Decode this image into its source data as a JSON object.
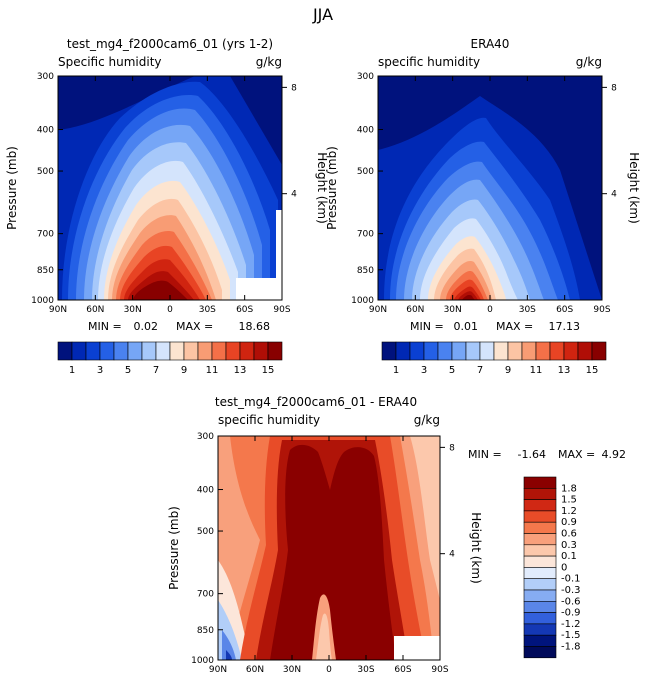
{
  "page": {
    "title": "JJA"
  },
  "panels": [
    {
      "title": "test_mg4_f2000cam6_01 (yrs 1-2)",
      "variable": "Specific humidity",
      "units": "g/kg",
      "ylabel": "Pressure (mb)",
      "rlabel": "Height (km)",
      "min_label": "MIN =",
      "min_value": "0.02",
      "max_label": "MAX =",
      "max_value": "18.68"
    },
    {
      "title": "ERA40",
      "variable": "specific humidity",
      "units": "g/kg",
      "ylabel": "Pressure (mb)",
      "rlabel": "Height (km)",
      "min_label": "MIN =",
      "min_value": "0.01",
      "max_label": "MAX =",
      "max_value": "17.13"
    },
    {
      "title": "test_mg4_f2000cam6_01 - ERA40",
      "variable": "specific humidity",
      "units": "g/kg",
      "ylabel": "Pressure (mb)",
      "rlabel": "Height (km)",
      "min_label": "MIN =",
      "min_value": "-1.64",
      "max_label": "MAX =",
      "max_value": "4.92"
    }
  ],
  "chart_data": [
    {
      "type": "heatmap",
      "x_ticks": [
        "90N",
        "60N",
        "30N",
        "0",
        "30S",
        "60S",
        "90S"
      ],
      "y_ticks": [
        "300",
        "400",
        "500",
        "700",
        "850",
        "1000"
      ],
      "y_scale": "log",
      "ylim": [
        1000,
        300
      ],
      "height_ticks": [
        "8",
        "4"
      ],
      "colorbar_labels": [
        "1",
        "3",
        "5",
        "7",
        "9",
        "11",
        "13",
        "15"
      ],
      "colorbar_orientation": "horizontal",
      "colors": [
        "#00127d",
        "#0028b4",
        "#0a40d2",
        "#2460e6",
        "#4a82f0",
        "#76a6f6",
        "#a6c8fa",
        "#d4e4fc",
        "#fce4d0",
        "#fcc4a4",
        "#f89c74",
        "#f47048",
        "#e84424",
        "#d02410",
        "#b00e06",
        "#880000"
      ]
    },
    {
      "type": "heatmap",
      "x_ticks": [
        "90N",
        "60N",
        "30N",
        "0",
        "30S",
        "60S",
        "90S"
      ],
      "y_ticks": [
        "300",
        "400",
        "500",
        "700",
        "850",
        "1000"
      ],
      "y_scale": "log",
      "ylim": [
        1000,
        300
      ],
      "height_ticks": [
        "8",
        "4"
      ],
      "colorbar_labels": [
        "1",
        "3",
        "5",
        "7",
        "9",
        "11",
        "13",
        "15"
      ],
      "colorbar_orientation": "horizontal"
    },
    {
      "type": "heatmap",
      "x_ticks": [
        "90N",
        "60N",
        "30N",
        "0",
        "30S",
        "60S",
        "90S"
      ],
      "y_ticks": [
        "300",
        "400",
        "500",
        "700",
        "850",
        "1000"
      ],
      "y_scale": "log",
      "ylim": [
        1000,
        300
      ],
      "height_ticks": [
        "8",
        "4"
      ],
      "colorbar_labels": [
        "1.8",
        "1.5",
        "1.2",
        "0.9",
        "0.6",
        "0.3",
        "0.1",
        "0",
        "-0.1",
        "-0.3",
        "-0.6",
        "-0.9",
        "-1.2",
        "-1.5",
        "-1.8"
      ],
      "colorbar_orientation": "vertical",
      "colors": [
        "#8a0000",
        "#b01408",
        "#d02814",
        "#e84c28",
        "#f4784c",
        "#f8a07c",
        "#fcc8ac",
        "#fce6da",
        "#e2ecfc",
        "#b2cef8",
        "#86acf2",
        "#5a86e8",
        "#3260dc",
        "#1438b4",
        "#00147c",
        "#000a5a"
      ]
    }
  ]
}
